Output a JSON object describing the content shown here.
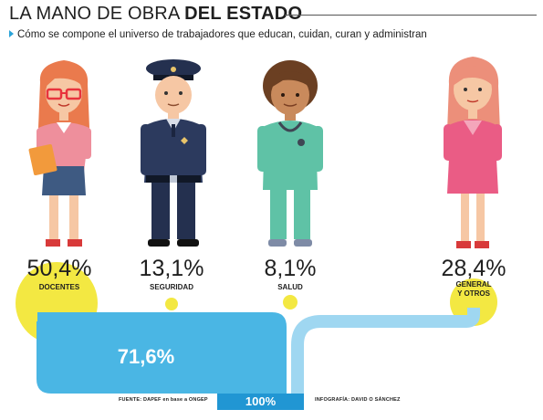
{
  "header": {
    "title_light": "LA MANO DE OBRA ",
    "title_bold": "DEL ESTADO",
    "subtitle": "Cómo se compone el universo de trabajadores que educan, cuidan, curan y administran"
  },
  "colors": {
    "yellow": "#f3e842",
    "blue": "#4ab6e4",
    "dark_blue": "#2196d3",
    "bullet": "#2aa3d8"
  },
  "figures": [
    {
      "name": "teacher-figure",
      "icon": "teacher-woman-icon"
    },
    {
      "name": "police-figure",
      "icon": "police-officer-icon"
    },
    {
      "name": "nurse-figure",
      "icon": "health-worker-icon"
    },
    {
      "name": "general-figure",
      "icon": "woman-general-icon"
    }
  ],
  "chart_data": {
    "type": "flow",
    "categories": [
      "DOCENTES",
      "SEGURIDAD",
      "SALUD",
      "GENERAL Y OTROS"
    ],
    "values": [
      50.4,
      13.1,
      8.1,
      28.4
    ],
    "value_labels": [
      "50,4%",
      "13,1%",
      "8,1%",
      "28,4%"
    ],
    "combined_label": "71,6%",
    "combined_value": 71.6,
    "total_label": "100%",
    "total_value": 100,
    "source": "FUENTE: DAPEF en base a ONGEP",
    "credit": "INFOGRAFÍA: DAVID O SÁNCHEZ"
  }
}
